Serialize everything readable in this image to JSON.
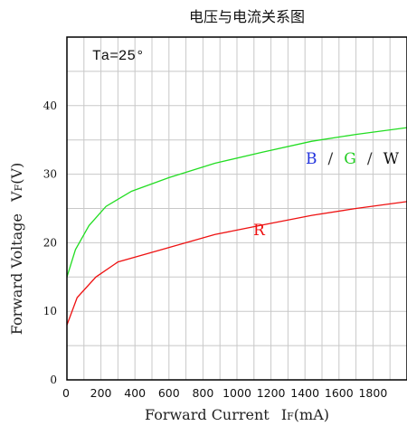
{
  "chart_data": {
    "type": "line",
    "title": "电压与电流关系图",
    "annotation": "Ta=25°",
    "xlabel": {
      "main": "Forward Current",
      "symbol": "I",
      "sub": "F",
      "unit": "(mA)"
    },
    "ylabel": {
      "main": "Forward Voltage",
      "symbol": "V",
      "sub": "F",
      "unit": "(V)"
    },
    "xlim": [
      0,
      2000
    ],
    "ylim": [
      0,
      50
    ],
    "x_ticks": [
      0,
      200,
      400,
      600,
      800,
      1000,
      1200,
      1400,
      1600,
      1800
    ],
    "y_ticks": [
      0,
      10,
      20,
      30,
      40
    ],
    "grid": true,
    "series": [
      {
        "name": "B / G / W",
        "color": "#22dd22",
        "x": [
          0,
          50,
          130,
          230,
          380,
          600,
          870,
          1150,
          1440,
          1700,
          2000
        ],
        "y": [
          15,
          19,
          22.5,
          25.3,
          27.5,
          29.5,
          31.6,
          33.2,
          34.8,
          35.8,
          36.8
        ]
      },
      {
        "name": "R",
        "color": "#ee1111",
        "x": [
          0,
          60,
          170,
          300,
          500,
          870,
          1150,
          1440,
          1700,
          2000
        ],
        "y": [
          8,
          12,
          15,
          17.2,
          18.6,
          21.2,
          22.6,
          24,
          25,
          26
        ]
      }
    ],
    "series_label_parts": [
      {
        "text": "B",
        "color": "#2233dd"
      },
      {
        "text": "/",
        "color": "#333333"
      },
      {
        "text": "G",
        "color": "#22cc22"
      },
      {
        "text": "/",
        "color": "#333333"
      },
      {
        "text": "W",
        "color": "#111111"
      }
    ],
    "r_label": {
      "text": "R",
      "color": "#ee1111"
    }
  }
}
